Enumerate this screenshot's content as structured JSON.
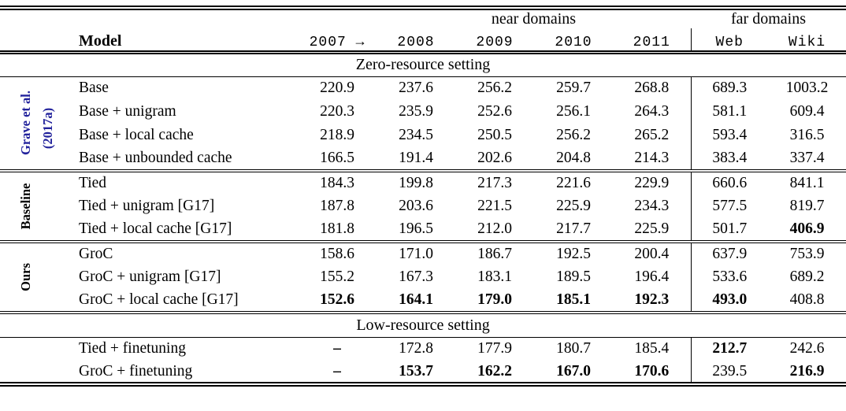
{
  "table": {
    "header": {
      "model_label": "Model",
      "near_domains_label": "near domains",
      "far_domains_label": "far domains",
      "columns": [
        "2007 →",
        "2008",
        "2009",
        "2010",
        "2011",
        "Web",
        "Wiki"
      ]
    },
    "colors": {
      "group_accent_blue": "#22229c",
      "text": "#000000"
    },
    "sections": [
      {
        "title": "Zero-resource setting",
        "groups": [
          {
            "label": "Grave et al.",
            "label2": "(2017a)",
            "label_color": "#22229c",
            "rows": [
              {
                "model": "Base",
                "values": [
                  "220.9",
                  "237.6",
                  "256.2",
                  "259.7",
                  "268.8",
                  "689.3",
                  "1003.2"
                ],
                "bold": []
              },
              {
                "model": "Base + unigram",
                "values": [
                  "220.3",
                  "235.9",
                  "252.6",
                  "256.1",
                  "264.3",
                  "581.1",
                  "609.4"
                ],
                "bold": []
              },
              {
                "model": "Base + local cache",
                "values": [
                  "218.9",
                  "234.5",
                  "250.5",
                  "256.2",
                  "265.2",
                  "593.4",
                  "316.5"
                ],
                "bold": []
              },
              {
                "model": "Base + unbounded cache",
                "values": [
                  "166.5",
                  "191.4",
                  "202.6",
                  "204.8",
                  "214.3",
                  "383.4",
                  "337.4"
                ],
                "bold": []
              }
            ]
          },
          {
            "label": "Baseline",
            "label2": "",
            "label_color": "#000000",
            "rows": [
              {
                "model": "Tied",
                "values": [
                  "184.3",
                  "199.8",
                  "217.3",
                  "221.6",
                  "229.9",
                  "660.6",
                  "841.1"
                ],
                "bold": []
              },
              {
                "model": "Tied + unigram [G17]",
                "values": [
                  "187.8",
                  "203.6",
                  "221.5",
                  "225.9",
                  "234.3",
                  "577.5",
                  "819.7"
                ],
                "bold": []
              },
              {
                "model": "Tied + local cache [G17]",
                "values": [
                  "181.8",
                  "196.5",
                  "212.0",
                  "217.7",
                  "225.9",
                  "501.7",
                  "406.9"
                ],
                "bold": [
                  6
                ]
              }
            ]
          },
          {
            "label": "Ours",
            "label2": "",
            "label_color": "#000000",
            "rows": [
              {
                "model": "GroC",
                "values": [
                  "158.6",
                  "171.0",
                  "186.7",
                  "192.5",
                  "200.4",
                  "637.9",
                  "753.9"
                ],
                "bold": []
              },
              {
                "model": "GroC + unigram [G17]",
                "values": [
                  "155.2",
                  "167.3",
                  "183.1",
                  "189.5",
                  "196.4",
                  "533.6",
                  "689.2"
                ],
                "bold": []
              },
              {
                "model": "GroC + local cache [G17]",
                "values": [
                  "152.6",
                  "164.1",
                  "179.0",
                  "185.1",
                  "192.3",
                  "493.0",
                  "408.8"
                ],
                "bold": [
                  0,
                  1,
                  2,
                  3,
                  4,
                  5
                ]
              }
            ]
          }
        ]
      },
      {
        "title": "Low-resource setting",
        "groups": [
          {
            "label": "",
            "label2": "",
            "label_color": "#000000",
            "rows": [
              {
                "model": "Tied + finetuning",
                "values": [
                  "–",
                  "172.8",
                  "177.9",
                  "180.7",
                  "185.4",
                  "212.7",
                  "242.6"
                ],
                "bold": [
                  0,
                  5
                ]
              },
              {
                "model": "GroC + finetuning",
                "values": [
                  "–",
                  "153.7",
                  "162.2",
                  "167.0",
                  "170.6",
                  "239.5",
                  "216.9"
                ],
                "bold": [
                  0,
                  1,
                  2,
                  3,
                  4,
                  6
                ]
              }
            ]
          }
        ]
      }
    ]
  }
}
